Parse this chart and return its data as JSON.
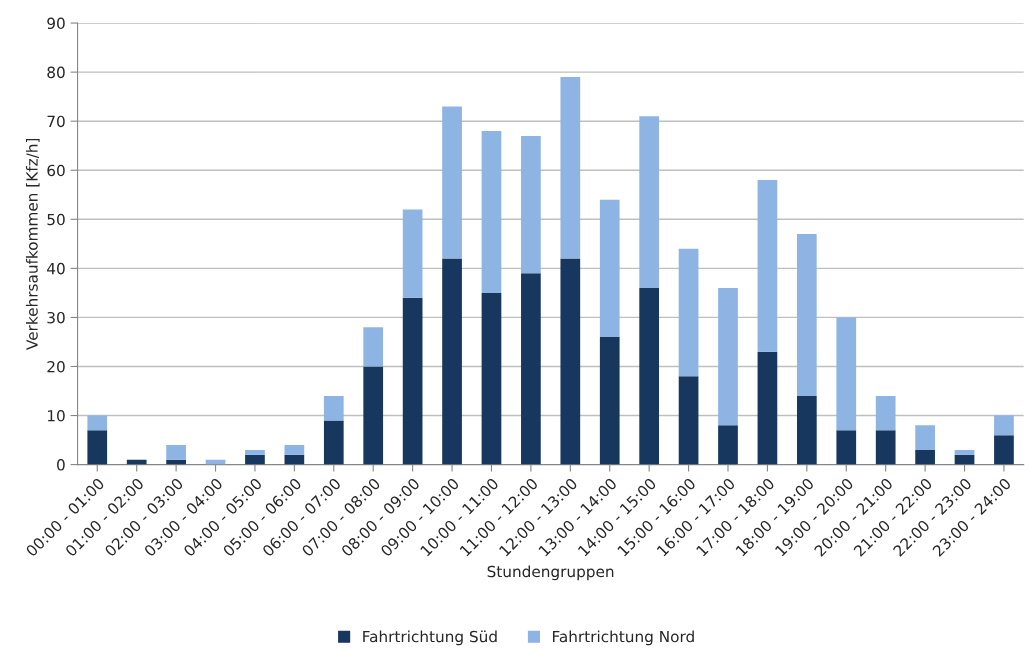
{
  "chart_data": {
    "type": "bar",
    "stacked": true,
    "xlabel": "Stundengruppen",
    "ylabel": "Verkehrsaufkommen [Kfz/h]",
    "categories": [
      "00:00 - 01:00",
      "01:00 - 02:00",
      "02:00 - 03:00",
      "03:00 - 04:00",
      "04:00 - 05:00",
      "05:00 - 06:00",
      "06:00 - 07:00",
      "07:00 - 08:00",
      "08:00 - 09:00",
      "09:00 - 10:00",
      "10:00 - 11:00",
      "11:00 - 12:00",
      "12:00 - 13:00",
      "13:00 - 14:00",
      "14:00 - 15:00",
      "15:00 - 16:00",
      "16:00 - 17:00",
      "17:00 - 18:00",
      "18:00 - 19:00",
      "19:00 - 20:00",
      "20:00 - 21:00",
      "21:00 - 22:00",
      "22:00 - 23:00",
      "23:00 - 24:00"
    ],
    "series": [
      {
        "name": "Fahrtrichtung Süd",
        "color": "#17375e",
        "values": [
          7,
          1,
          1,
          0,
          2,
          2,
          9,
          20,
          34,
          42,
          35,
          39,
          42,
          26,
          36,
          18,
          8,
          23,
          14,
          7,
          7,
          3,
          2,
          6
        ]
      },
      {
        "name": "Fahrtrichtung Nord",
        "color": "#8db4e2",
        "values": [
          3,
          0,
          3,
          1,
          1,
          2,
          5,
          8,
          18,
          31,
          33,
          28,
          37,
          28,
          35,
          26,
          28,
          35,
          33,
          23,
          7,
          5,
          1,
          4
        ]
      }
    ],
    "ylim": [
      0,
      90
    ],
    "yticks": [
      0,
      10,
      20,
      30,
      40,
      50,
      60,
      70,
      80,
      90
    ],
    "grid": "y",
    "legend": "bottom"
  }
}
